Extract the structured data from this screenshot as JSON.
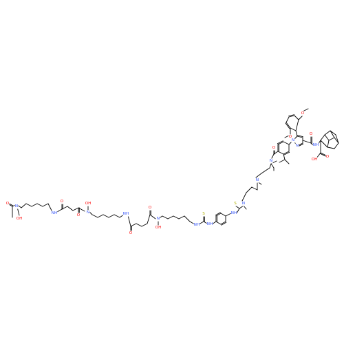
{
  "colors": {
    "bond": "#000000",
    "O": "#ff0d0d",
    "N": "#3050f8",
    "S": "#b3b300",
    "C": "#000000"
  },
  "labels": {
    "o_acetyl": "O",
    "o_acetyl_oh": "OH",
    "n_acetyl": "N",
    "nh_1": "NH",
    "o_1": "O",
    "o_2": "O",
    "n_hydrox_1": "N",
    "oh_1": "OH",
    "nh_2": "NH",
    "o_3": "O",
    "o_4": "O",
    "n_hydrox_2": "N",
    "oh_2": "OH",
    "nh_3": "NH",
    "s_1": "S",
    "nh_4": "NH",
    "nh_5": "NH",
    "s_2": "S",
    "n_thio": "N",
    "n_amine": "N",
    "n_amide": "N",
    "o_amide": "O",
    "n_pyr_1": "N",
    "n_pyr_2": "N",
    "o_ome_1": "O",
    "o_ome_2": "O",
    "o_carbonyl": "O",
    "nh_adam": "NH",
    "o_acid": "O",
    "oh_acid": "OH"
  }
}
